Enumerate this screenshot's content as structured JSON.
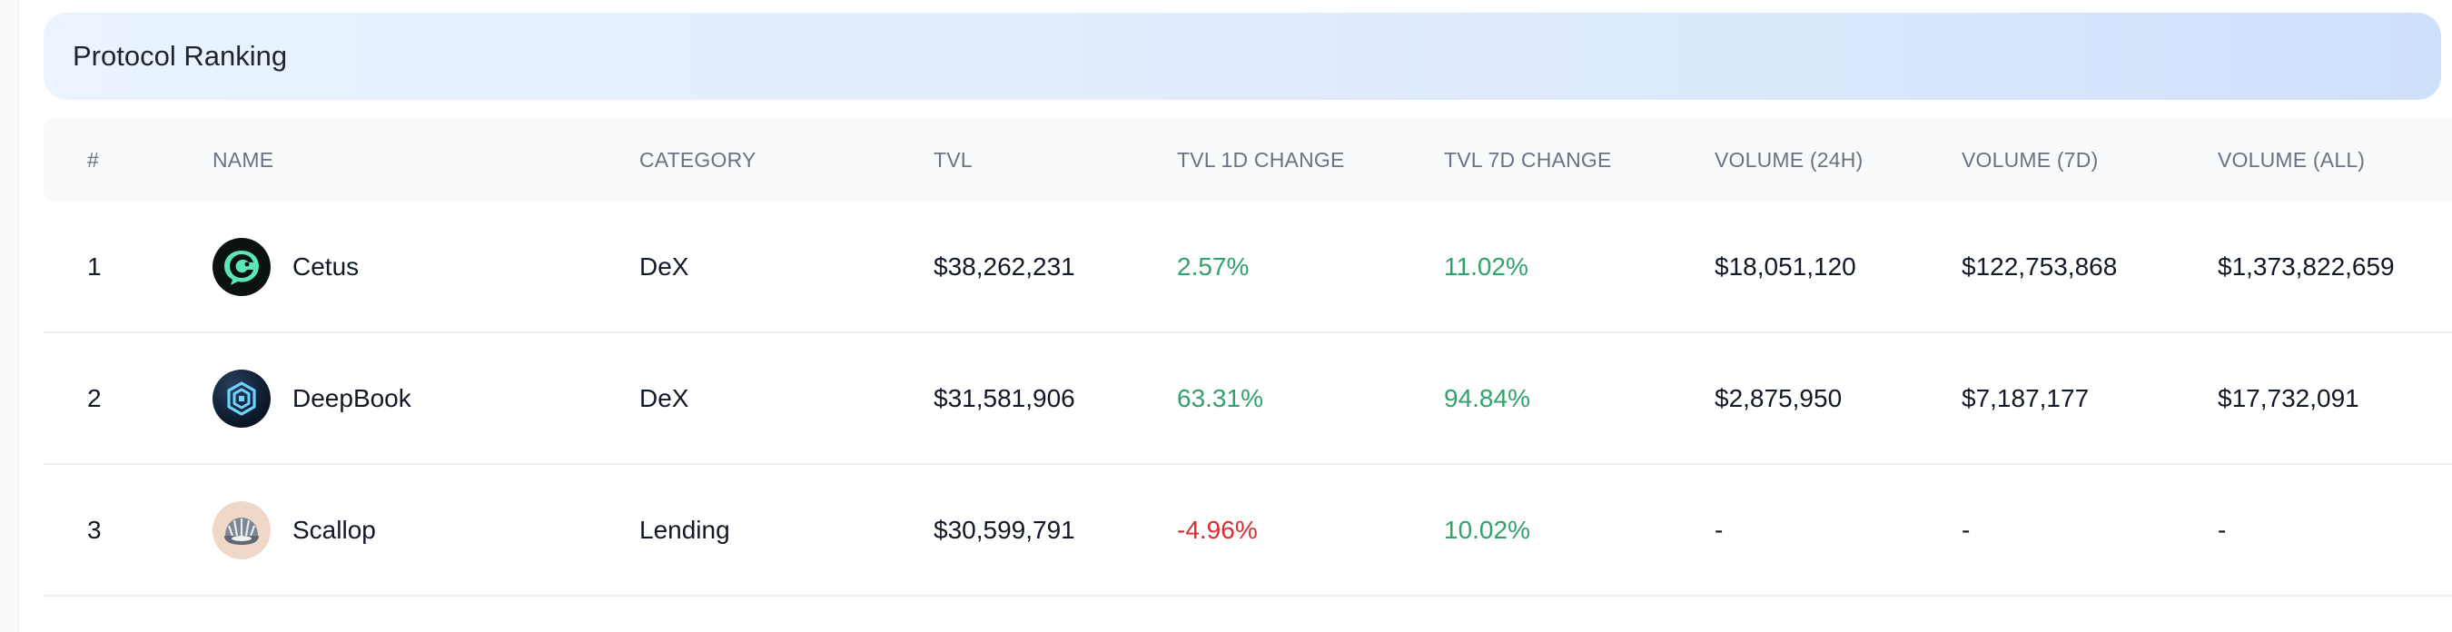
{
  "header": {
    "title": "Protocol Ranking"
  },
  "table": {
    "columns": [
      "#",
      "NAME",
      "CATEGORY",
      "TVL",
      "TVL 1D CHANGE",
      "TVL 7D CHANGE",
      "VOLUME (24H)",
      "VOLUME (7D)",
      "VOLUME (ALL)"
    ],
    "rows": [
      {
        "rank": "1",
        "name": "Cetus",
        "icon": "cetus-logo-icon",
        "category": "DeX",
        "tvl": "$38,262,231",
        "tvl_1d": "2.57%",
        "tvl_1d_trend": "up",
        "tvl_7d": "11.02%",
        "tvl_7d_trend": "up",
        "vol_24h": "$18,051,120",
        "vol_7d": "$122,753,868",
        "vol_all": "$1,373,822,659"
      },
      {
        "rank": "2",
        "name": "DeepBook",
        "icon": "deepbook-logo-icon",
        "category": "DeX",
        "tvl": "$31,581,906",
        "tvl_1d": "63.31%",
        "tvl_1d_trend": "up",
        "tvl_7d": "94.84%",
        "tvl_7d_trend": "up",
        "vol_24h": "$2,875,950",
        "vol_7d": "$7,187,177",
        "vol_all": "$17,732,091"
      },
      {
        "rank": "3",
        "name": "Scallop",
        "icon": "scallop-logo-icon",
        "category": "Lending",
        "tvl": "$30,599,791",
        "tvl_1d": "-4.96%",
        "tvl_1d_trend": "down",
        "tvl_7d": "10.02%",
        "tvl_7d_trend": "up",
        "vol_24h": "-",
        "vol_7d": "-",
        "vol_all": "-"
      }
    ]
  },
  "colors": {
    "positive": "#2fa36b",
    "negative": "#d92d32",
    "header_gradient_start": "#eaf3ff",
    "header_gradient_end": "#cfe0fb"
  }
}
